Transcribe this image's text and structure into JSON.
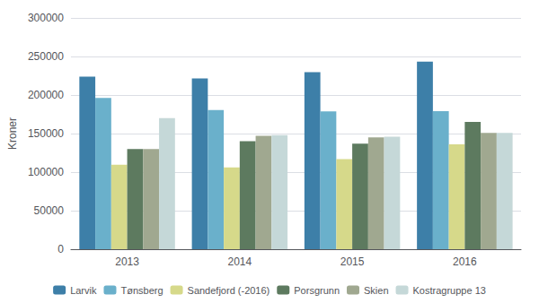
{
  "chart_data": {
    "type": "bar",
    "categories": [
      "2013",
      "2014",
      "2015",
      "2016"
    ],
    "series": [
      {
        "name": "Larvik",
        "color": "#3d7fa8",
        "values": [
          223747,
          221465,
          229517,
          243433
        ]
      },
      {
        "name": "Tønsberg",
        "color": "#6ab0cb",
        "values": [
          196290,
          180659,
          178684,
          179070
        ]
      },
      {
        "name": "Sandefjord (-2016)",
        "color": "#d6d98a",
        "values": [
          109632,
          106000,
          117000,
          136000
        ]
      },
      {
        "name": "Porsgrunn",
        "color": "#5d7a5f",
        "values": [
          130000,
          140000,
          137000,
          165000
        ]
      },
      {
        "name": "Skien",
        "color": "#a0a890",
        "values": [
          130000,
          147000,
          145000,
          151000
        ]
      },
      {
        "name": "Kostragruppe 13",
        "color": "#c5d8d8",
        "values": [
          170000,
          148000,
          146000,
          151000
        ]
      }
    ],
    "ylabel": "Kroner",
    "ylim": [
      0,
      300000
    ],
    "yticks": [
      0,
      50000,
      100000,
      150000,
      200000,
      250000,
      300000
    ],
    "grid": true,
    "legend": "bottom"
  }
}
